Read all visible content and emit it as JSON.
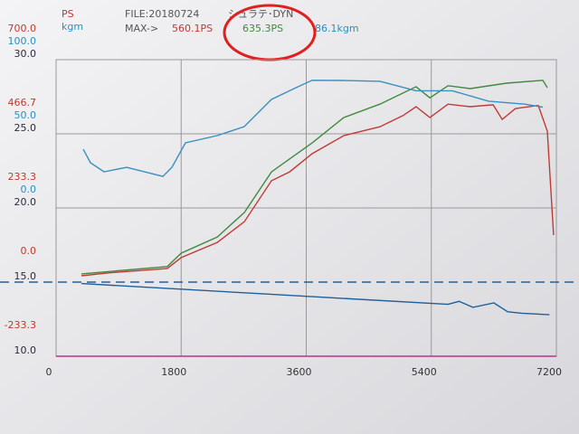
{
  "chart_data": {
    "type": "line",
    "header": {
      "units": [
        "PS",
        "kgm"
      ],
      "file": "FILE:20180724",
      "name": "シュラテ･DYN",
      "max_label": "MAX->",
      "max_values": [
        "560.1PS",
        "635.3PS",
        "86.1kgm"
      ]
    },
    "xlim": [
      0,
      7200
    ],
    "xticks": [
      0,
      1800,
      3600,
      5400,
      7200
    ],
    "ylim": [
      -233.3,
      700
    ],
    "yticks": [
      {
        "value": 700,
        "label": "700.0"
      },
      466.7,
      233.3,
      {
        "value": 0,
        "label": "0.0"
      },
      -233.3
    ],
    "y2lim": [
      -100,
      100
    ],
    "y2ticks": [
      {
        "value": 100,
        "label": "100.0"
      },
      {
        "value": 50,
        "label": "50.0"
      },
      {
        "value": 0,
        "label": "0.0"
      }
    ],
    "y3lim": [
      10,
      30
    ],
    "y3ticks": [
      {
        "value": 30,
        "label": "30.0"
      },
      {
        "value": 25,
        "label": "25.0"
      },
      {
        "value": 20,
        "label": "20.0"
      },
      {
        "value": 15,
        "label": "15.0"
      },
      {
        "value": 10,
        "label": "10.0"
      }
    ],
    "axis_colors": {
      "y": "#c0392b",
      "y2": "#2a8fc0",
      "y3": "#2b2b3a"
    },
    "grid": true,
    "series": [
      {
        "axis": "y",
        "color": "#c23a36",
        "x": [
          365,
          755,
          1600,
          1800,
          2320,
          2710,
          3100,
          3360,
          3685,
          4140,
          4660,
          4990,
          5180,
          5380,
          5640,
          5960,
          6290,
          6420,
          6610,
          6940,
          7070,
          7160
        ],
        "values": [
          20,
          29,
          43,
          77,
          125,
          190,
          319,
          347,
          404,
          461,
          489,
          524,
          552,
          518,
          560,
          552,
          558,
          512,
          546,
          556,
          475,
          148
        ]
      },
      {
        "axis": "y",
        "color": "#3f8a3c",
        "x": [
          365,
          1600,
          1800,
          2320,
          2710,
          3100,
          3685,
          4140,
          4660,
          5180,
          5380,
          5640,
          5960,
          6480,
          7005,
          7070
        ],
        "values": [
          26,
          49,
          91,
          142,
          219,
          347,
          438,
          518,
          560,
          615,
          580,
          618,
          609,
          626,
          635,
          612
        ]
      },
      {
        "axis": "y2",
        "color": "#3a8fbf",
        "x": [
          391,
          495,
          690,
          1016,
          1536,
          1667,
          1862,
          2318,
          2708,
          3099,
          3424,
          3685,
          4141,
          4662,
          5182,
          5703,
          6224,
          6745,
          7005
        ],
        "values": [
          39.6,
          30.5,
          24.4,
          27.4,
          21.3,
          27.4,
          43.9,
          48.8,
          54.9,
          73.2,
          80.5,
          86.1,
          86,
          85.4,
          79,
          79,
          72,
          70,
          68
        ]
      },
      {
        "axis": "y3",
        "color": "#1f5f9c",
        "x": [
          365,
          3000,
          5640,
          5800,
          6000,
          6300,
          6500,
          6700,
          7100
        ],
        "values": [
          14.9,
          14.2,
          13.5,
          13.7,
          13.3,
          13.6,
          13.0,
          12.9,
          12.8
        ]
      }
    ]
  }
}
